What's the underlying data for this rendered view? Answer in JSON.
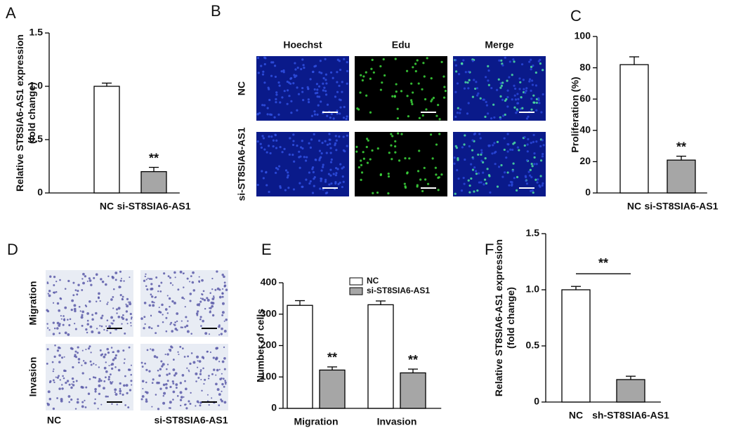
{
  "chart_data": [
    {
      "panel": "A",
      "type": "bar",
      "ylabel": [
        "Relative ST8SIA6-AS1 expression",
        "(fold change)"
      ],
      "categories": [
        "NC",
        "si-ST8SIA6-AS1"
      ],
      "values": [
        1.0,
        0.2
      ],
      "errors": [
        0.03,
        0.04
      ],
      "colors": [
        "#ffffff",
        "#a6a6a6"
      ],
      "annotations": [
        null,
        "**"
      ],
      "ylim": [
        0,
        1.5
      ],
      "yticks": [
        0,
        0.5,
        {
          "value": 1,
          "label": "1.0"
        },
        1.5
      ]
    },
    {
      "panel": "C",
      "type": "bar",
      "ylabel": [
        "Proliferation (%)"
      ],
      "categories": [
        "NC",
        "si-ST8SIA6-AS1"
      ],
      "values": [
        82,
        21
      ],
      "errors": [
        5,
        2.5
      ],
      "colors": [
        "#ffffff",
        "#a6a6a6"
      ],
      "annotations": [
        null,
        "**"
      ],
      "ylim": [
        0,
        100
      ],
      "yticks": [
        0,
        20,
        40,
        60,
        80,
        100
      ]
    },
    {
      "panel": "E",
      "type": "grouped_bar",
      "ylabel": [
        "Number of cells"
      ],
      "categories": [
        "Migration",
        "Invasion"
      ],
      "series": [
        {
          "name": "NC",
          "color": "#ffffff",
          "values": [
            328,
            330
          ],
          "errors": [
            15,
            12
          ],
          "annotations": [
            null,
            null
          ]
        },
        {
          "name": "si-ST8SIA6-AS1",
          "color": "#a6a6a6",
          "values": [
            122,
            113
          ],
          "errors": [
            10,
            12
          ],
          "annotations": [
            "**",
            "**"
          ]
        }
      ],
      "legend": "upper right",
      "ylim": [
        0,
        400
      ],
      "yticks": [
        0,
        100,
        200,
        300,
        400
      ]
    },
    {
      "panel": "F",
      "type": "bar",
      "ylabel": [
        "Relative ST8SIA6-AS1 expression",
        "(fold change)"
      ],
      "categories": [
        "NC",
        "sh-ST8SIA6-AS1"
      ],
      "values": [
        1.0,
        0.2
      ],
      "errors": [
        0.03,
        0.03
      ],
      "colors": [
        "#ffffff",
        "#a6a6a6"
      ],
      "bracket_label": "**",
      "ylim": [
        0,
        1.5
      ],
      "yticks": [
        0,
        0.5,
        {
          "value": 1,
          "label": "1.0"
        },
        1.5
      ]
    }
  ],
  "panel_B": {
    "panel": "B",
    "columns": [
      "Hoechst",
      "Edu",
      "Merge"
    ],
    "rows": [
      "NC",
      "si-ST8SIA6-AS1"
    ]
  },
  "panel_D": {
    "panel": "D",
    "columns": [
      "NC",
      "si-ST8SIA6-AS1"
    ],
    "rows": [
      "Migration",
      "Invasion"
    ]
  }
}
